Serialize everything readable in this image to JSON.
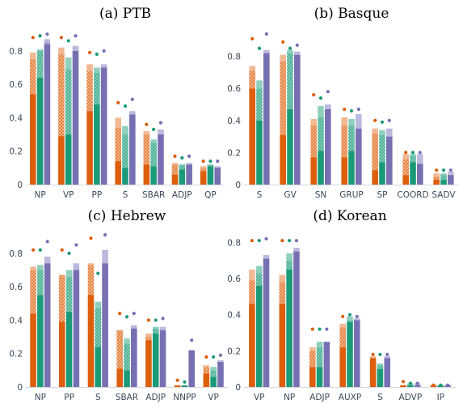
{
  "colors": {
    "orange": "#dd5e0b",
    "green": "#1b9a78",
    "purple": "#7670b3",
    "orange_light": "#f1b993",
    "green_light": "#8fd0bd",
    "purple_light": "#bcb9de"
  },
  "series_color_keys": [
    "orange",
    "green",
    "purple"
  ],
  "chart_data": [
    {
      "type": "bar",
      "title": "(a) PTB",
      "ylim": [
        0,
        0.93
      ],
      "yticks": [
        "0",
        "0.2",
        "0.4",
        "0.6",
        "0.8"
      ],
      "ytick_values": [
        0,
        0.2,
        0.4,
        0.6,
        0.8
      ],
      "categories": [
        "NP",
        "VP",
        "PP",
        "S",
        "SBAR",
        "ADJP",
        "QP"
      ],
      "series": [
        {
          "color": "orange",
          "values": [
            [
              0.54,
              0.75,
              0.79,
              0.88
            ],
            [
              0.29,
              0.78,
              0.82,
              0.88
            ],
            [
              0.44,
              0.68,
              0.72,
              0.79
            ],
            [
              0.14,
              0.34,
              0.4,
              0.49
            ],
            [
              0.12,
              0.3,
              0.32,
              0.36
            ],
            [
              0.06,
              0.12,
              0.13,
              0.17
            ],
            [
              0.08,
              0.1,
              0.11,
              0.14
            ]
          ]
        },
        {
          "color": "green",
          "values": [
            [
              0.64,
              0.8,
              0.81,
              0.89
            ],
            [
              0.3,
              0.69,
              0.76,
              0.86
            ],
            [
              0.48,
              0.67,
              0.7,
              0.78
            ],
            [
              0.1,
              0.3,
              0.35,
              0.47
            ],
            [
              0.11,
              0.25,
              0.27,
              0.33
            ],
            [
              0.09,
              0.12,
              0.12,
              0.16
            ],
            [
              0.11,
              0.12,
              0.12,
              0.14
            ]
          ]
        },
        {
          "color": "purple",
          "values": [
            [
              0.84,
              0.85,
              0.87,
              0.9
            ],
            [
              0.8,
              0.8,
              0.83,
              0.89
            ],
            [
              0.7,
              0.7,
              0.72,
              0.8
            ],
            [
              0.42,
              0.42,
              0.44,
              0.51
            ],
            [
              0.3,
              0.3,
              0.33,
              0.37
            ],
            [
              0.12,
              0.12,
              0.13,
              0.17
            ],
            [
              0.1,
              0.1,
              0.11,
              0.14
            ]
          ]
        }
      ]
    },
    {
      "type": "bar",
      "title": "(b) Basque",
      "ylim": [
        0,
        0.97
      ],
      "yticks": [
        "0",
        "0.2",
        "0.4",
        "0.6",
        "0.8"
      ],
      "ytick_values": [
        0,
        0.2,
        0.4,
        0.6,
        0.8
      ],
      "categories": [
        "S",
        "GV",
        "SN",
        "GRUP",
        "SP",
        "COORD",
        "SADV"
      ],
      "series": [
        {
          "color": "orange",
          "values": [
            [
              0.6,
              0.71,
              0.74,
              0.91
            ],
            [
              0.31,
              0.77,
              0.81,
              0.89
            ],
            [
              0.17,
              0.37,
              0.41,
              0.56
            ],
            [
              0.17,
              0.37,
              0.42,
              0.47
            ],
            [
              0.09,
              0.32,
              0.35,
              0.4
            ],
            [
              0.06,
              0.16,
              0.19,
              0.2
            ],
            [
              0.03,
              0.05,
              0.07,
              0.09
            ]
          ]
        },
        {
          "color": "green",
          "values": [
            [
              0.4,
              0.6,
              0.65,
              0.85
            ],
            [
              0.47,
              0.82,
              0.84,
              0.85
            ],
            [
              0.21,
              0.42,
              0.49,
              0.54
            ],
            [
              0.21,
              0.37,
              0.41,
              0.46
            ],
            [
              0.14,
              0.31,
              0.34,
              0.39
            ],
            [
              0.14,
              0.18,
              0.19,
              0.2
            ],
            [
              0.03,
              0.06,
              0.07,
              0.09
            ]
          ]
        },
        {
          "color": "purple",
          "values": [
            [
              0.82,
              0.82,
              0.84,
              0.94
            ],
            [
              0.81,
              0.81,
              0.83,
              0.87
            ],
            [
              0.47,
              0.47,
              0.5,
              0.58
            ],
            [
              0.35,
              0.35,
              0.44,
              0.47
            ],
            [
              0.3,
              0.3,
              0.35,
              0.4
            ],
            [
              0.13,
              0.13,
              0.19,
              0.2
            ],
            [
              0.06,
              0.06,
              0.08,
              0.09
            ]
          ]
        }
      ]
    },
    {
      "type": "bar",
      "title": "(c) Hebrew",
      "ylim": [
        0,
        0.93
      ],
      "yticks": [
        "0",
        "0.2",
        "0.4",
        "0.6",
        "0.8"
      ],
      "ytick_values": [
        0,
        0.2,
        0.4,
        0.6,
        0.8
      ],
      "categories": [
        "NP",
        "PP",
        "S",
        "SBAR",
        "ADJP",
        "NNPP",
        "VP"
      ],
      "series": [
        {
          "color": "orange",
          "values": [
            [
              0.44,
              0.7,
              0.72,
              0.82
            ],
            [
              0.39,
              0.67,
              0.67,
              0.82
            ],
            [
              0.55,
              0.73,
              0.74,
              0.89
            ],
            [
              0.11,
              0.34,
              0.34,
              0.44
            ],
            [
              0.28,
              0.3,
              0.32,
              0.4
            ],
            [
              0.01,
              0.01,
              0.01,
              0.04
            ],
            [
              0.08,
              0.12,
              0.13,
              0.18
            ]
          ]
        },
        {
          "color": "green",
          "values": [
            [
              0.55,
              0.7,
              0.73,
              0.82
            ],
            [
              0.45,
              0.66,
              0.7,
              0.8
            ],
            [
              0.24,
              0.47,
              0.51,
              0.68
            ],
            [
              0.1,
              0.26,
              0.29,
              0.42
            ],
            [
              0.32,
              0.35,
              0.36,
              0.4
            ],
            [
              0.01,
              0.01,
              0.01,
              0.03
            ],
            [
              0.06,
              0.1,
              0.12,
              0.18
            ]
          ]
        },
        {
          "color": "purple",
          "values": [
            [
              0.74,
              0.74,
              0.78,
              0.87
            ],
            [
              0.7,
              0.7,
              0.74,
              0.85
            ],
            [
              0.74,
              0.74,
              0.82,
              0.91
            ],
            [
              0.35,
              0.35,
              0.37,
              0.44
            ],
            [
              0.34,
              0.34,
              0.36,
              0.41
            ],
            [
              0.22,
              0.22,
              0.22,
              0.28
            ],
            [
              0.15,
              0.15,
              0.16,
              0.19
            ]
          ]
        }
      ]
    },
    {
      "type": "bar",
      "title": "(d) Korean",
      "ylim": [
        0,
        0.86
      ],
      "yticks": [
        "0",
        "0.2",
        "0.4",
        "0.6",
        "0.8"
      ],
      "ytick_values": [
        0,
        0.2,
        0.4,
        0.6,
        0.8
      ],
      "categories": [
        "VP",
        "NP",
        "ADJP",
        "AUXP",
        "S",
        "ADVP",
        "IP"
      ],
      "series": [
        {
          "color": "orange",
          "values": [
            [
              0.46,
              0.59,
              0.65,
              0.81
            ],
            [
              0.46,
              0.58,
              0.62,
              0.81
            ],
            [
              0.11,
              0.2,
              0.22,
              0.32
            ],
            [
              0.22,
              0.33,
              0.35,
              0.39
            ],
            [
              0.16,
              0.16,
              0.17,
              0.18
            ],
            [
              0.01,
              0.01,
              0.01,
              0.03
            ],
            [
              0.01,
              0.01,
              0.01,
              0.01
            ]
          ]
        },
        {
          "color": "green",
          "values": [
            [
              0.56,
              0.63,
              0.67,
              0.81
            ],
            [
              0.65,
              0.7,
              0.74,
              0.81
            ],
            [
              0.11,
              0.22,
              0.25,
              0.32
            ],
            [
              0.36,
              0.37,
              0.39,
              0.4
            ],
            [
              0.1,
              0.12,
              0.13,
              0.18
            ],
            [
              0.01,
              0.01,
              0.02,
              0.02
            ],
            [
              0.01,
              0.01,
              0.01,
              0.01
            ]
          ]
        },
        {
          "color": "purple",
          "values": [
            [
              0.71,
              0.71,
              0.73,
              0.82
            ],
            [
              0.75,
              0.75,
              0.77,
              0.81
            ],
            [
              0.25,
              0.25,
              0.25,
              0.32
            ],
            [
              0.37,
              0.37,
              0.38,
              0.39
            ],
            [
              0.16,
              0.16,
              0.17,
              0.18
            ],
            [
              0.01,
              0.01,
              0.02,
              0.02
            ],
            [
              0.01,
              0.01,
              0.01,
              0.01
            ]
          ]
        }
      ]
    }
  ]
}
